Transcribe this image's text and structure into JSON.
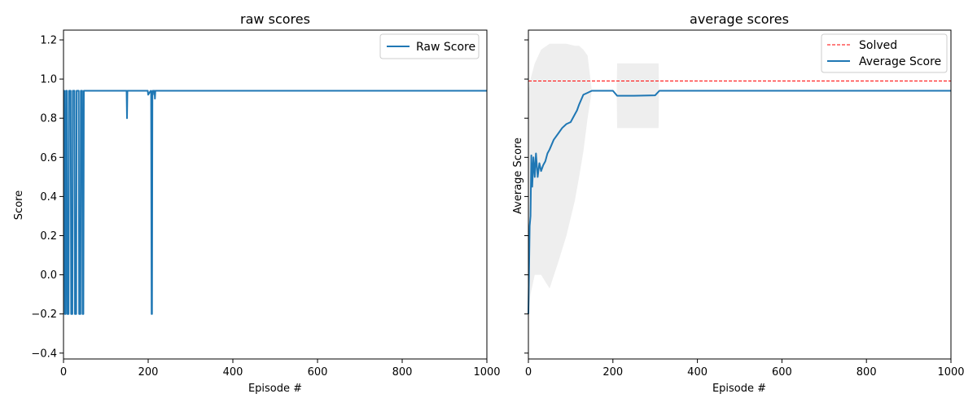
{
  "chart_data": [
    {
      "type": "line",
      "title": "raw scores",
      "xlabel": "Episode #",
      "ylabel": "Score",
      "xlim": [
        0,
        1000
      ],
      "ylim": [
        -0.43,
        1.25
      ],
      "xticks": [
        0,
        200,
        400,
        600,
        800,
        1000
      ],
      "yticks": [
        -0.4,
        -0.2,
        0.0,
        0.2,
        0.4,
        0.6,
        0.8,
        1.0,
        1.2
      ],
      "ytick_labels": [
        "−0.4",
        "−0.2",
        "0.0",
        "0.2",
        "0.4",
        "0.6",
        "0.8",
        "1.0",
        "1.2"
      ],
      "grid": false,
      "legend": {
        "position": "upper right",
        "entries": [
          "Raw Score"
        ]
      },
      "series": [
        {
          "name": "Raw Score",
          "color": "#1f77b4",
          "x": [
            0,
            2,
            3,
            5,
            6,
            8,
            9,
            12,
            13,
            17,
            18,
            21,
            22,
            26,
            27,
            30,
            31,
            36,
            37,
            40,
            41,
            44,
            45,
            47,
            48,
            149,
            150,
            151,
            152,
            199,
            200,
            206,
            207,
            208,
            209,
            210,
            211,
            212,
            213,
            215,
            216,
            217,
            218,
            230,
            300,
            400,
            500,
            600,
            700,
            800,
            900,
            1000
          ],
          "y": [
            0.94,
            0.94,
            -0.2,
            -0.2,
            0.94,
            0.94,
            -0.2,
            -0.2,
            0.94,
            0.94,
            -0.2,
            -0.2,
            0.94,
            0.94,
            -0.2,
            -0.2,
            0.94,
            0.94,
            -0.2,
            -0.2,
            0.94,
            0.94,
            -0.2,
            -0.2,
            0.94,
            0.94,
            0.8,
            0.94,
            0.94,
            0.94,
            0.92,
            0.94,
            0.93,
            -0.2,
            -0.2,
            0.94,
            0.92,
            0.94,
            0.94,
            0.94,
            0.9,
            0.94,
            0.94,
            0.94,
            0.94,
            0.94,
            0.94,
            0.94,
            0.94,
            0.94,
            0.94,
            0.94
          ]
        }
      ]
    },
    {
      "type": "line",
      "title": "average scores",
      "xlabel": "Episode #",
      "ylabel": "Average Score",
      "xlim": [
        0,
        1000
      ],
      "ylim": [
        -0.43,
        1.25
      ],
      "xticks": [
        0,
        200,
        400,
        600,
        800,
        1000
      ],
      "shared_y_with_left": true,
      "grid": false,
      "legend": {
        "position": "upper right",
        "entries": [
          "Solved",
          "Average Score"
        ]
      },
      "solved": {
        "name": "Solved",
        "y": 0.99,
        "color": "#ff0000",
        "style": "dashed"
      },
      "series": [
        {
          "name": "Average Score",
          "color": "#1f77b4",
          "x": [
            0,
            3,
            5,
            7,
            9,
            12,
            15,
            18,
            22,
            26,
            30,
            35,
            40,
            45,
            50,
            60,
            70,
            80,
            90,
            100,
            110,
            115,
            120,
            130,
            140,
            150,
            200,
            210,
            250,
            300,
            310,
            400,
            500,
            600,
            700,
            800,
            900,
            1000
          ],
          "y": [
            -0.2,
            0.25,
            0.3,
            0.61,
            0.45,
            0.6,
            0.5,
            0.62,
            0.5,
            0.57,
            0.53,
            0.56,
            0.58,
            0.62,
            0.64,
            0.69,
            0.72,
            0.75,
            0.77,
            0.78,
            0.82,
            0.84,
            0.87,
            0.92,
            0.93,
            0.94,
            0.94,
            0.915,
            0.915,
            0.917,
            0.94,
            0.94,
            0.94,
            0.94,
            0.94,
            0.94,
            0.94,
            0.94
          ]
        }
      ],
      "std_band": {
        "color": "#e8e8e8",
        "x": [
          0,
          5,
          15,
          30,
          50,
          70,
          90,
          110,
          120,
          130,
          140,
          150,
          200,
          209,
          210,
          300,
          308,
          309,
          1000
        ],
        "upper": [
          0.94,
          1.0,
          1.08,
          1.15,
          1.18,
          1.18,
          1.18,
          1.17,
          1.17,
          1.15,
          1.12,
          0.94,
          0.94,
          0.94,
          1.08,
          1.08,
          1.08,
          0.94,
          0.94
        ],
        "lower": [
          -0.2,
          -0.1,
          0.0,
          0.0,
          -0.07,
          0.06,
          0.2,
          0.38,
          0.5,
          0.63,
          0.8,
          0.94,
          0.94,
          0.94,
          0.75,
          0.75,
          0.75,
          0.94,
          0.94
        ]
      }
    }
  ]
}
